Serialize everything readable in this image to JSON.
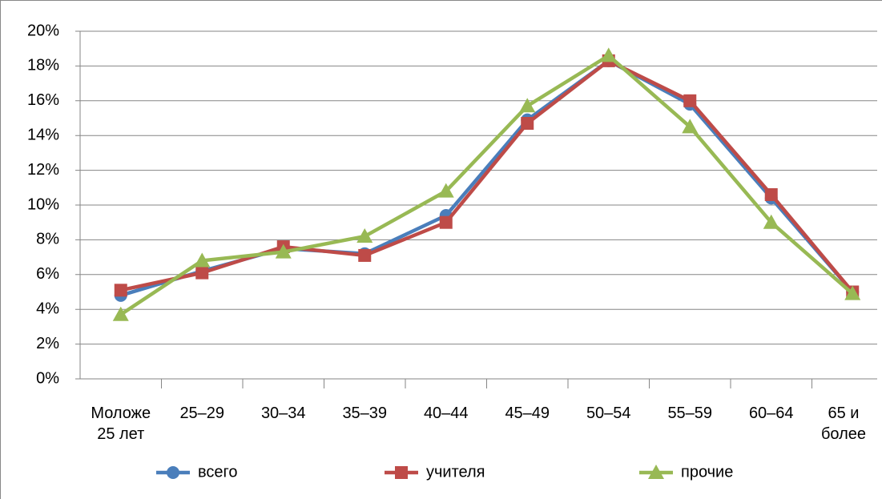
{
  "chart_data": {
    "type": "line",
    "categories": [
      "Моложе 25 лет",
      "25–29",
      "30–34",
      "35–39",
      "40–44",
      "45–49",
      "50–54",
      "55–59",
      "60–64",
      "65 и более"
    ],
    "series": [
      {
        "name": "всего",
        "color": "#4a7ebb",
        "marker": "circle",
        "values": [
          4.8,
          6.2,
          7.5,
          7.2,
          9.4,
          14.9,
          18.3,
          15.8,
          10.4,
          5.0
        ]
      },
      {
        "name": "учителя",
        "color": "#be4b48",
        "marker": "square",
        "values": [
          5.1,
          6.1,
          7.6,
          7.1,
          9.0,
          14.7,
          18.3,
          16.0,
          10.6,
          5.0
        ]
      },
      {
        "name": "прочие",
        "color": "#98b954",
        "marker": "triangle",
        "values": [
          3.7,
          6.8,
          7.3,
          8.2,
          10.8,
          15.7,
          18.6,
          14.5,
          9.0,
          4.9
        ]
      }
    ],
    "ylim": [
      0,
      20
    ],
    "yticks": [
      {
        "value": 0,
        "label": "0%"
      },
      {
        "value": 2,
        "label": "2%"
      },
      {
        "value": 4,
        "label": "4%"
      },
      {
        "value": 6,
        "label": "6%"
      },
      {
        "value": 8,
        "label": "8%"
      },
      {
        "value": 10,
        "label": "10%"
      },
      {
        "value": 12,
        "label": "12%"
      },
      {
        "value": 14,
        "label": "14%"
      },
      {
        "value": 16,
        "label": "16%"
      },
      {
        "value": 18,
        "label": "18%"
      },
      {
        "value": 20,
        "label": "20%"
      }
    ],
    "grid": true,
    "legend": "bottom"
  }
}
